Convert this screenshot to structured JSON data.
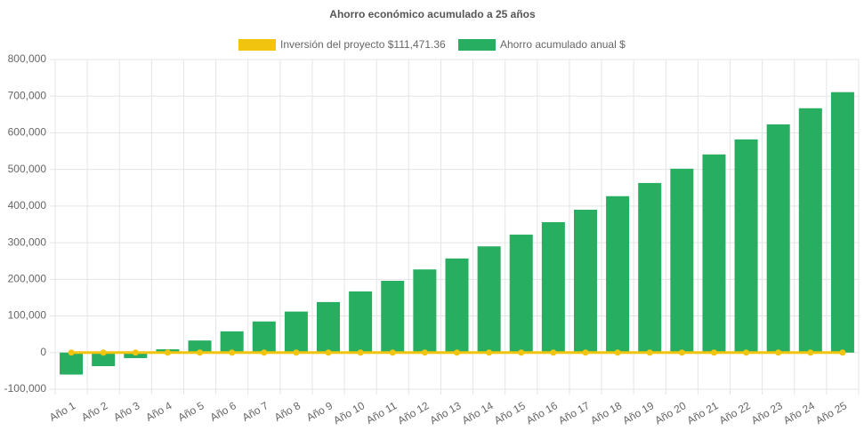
{
  "chart_data": {
    "type": "bar",
    "title": "Ahorro económico acumulado a 25 años",
    "categories": [
      "Año 1",
      "Año 2",
      "Año 3",
      "Año 4",
      "Año 5",
      "Año 6",
      "Año 7",
      "Año 8",
      "Año 9",
      "Año 10",
      "Año 11",
      "Año 12",
      "Año 13",
      "Año 14",
      "Año 15",
      "Año 16",
      "Año 17",
      "Año 18",
      "Año 19",
      "Año 20",
      "Año 21",
      "Año 22",
      "Año 23",
      "Año 24",
      "Año 25"
    ],
    "series": [
      {
        "name": "Inversión del proyecto $111,471.36",
        "type": "line",
        "color": "#f1c40f",
        "values": [
          0,
          0,
          0,
          0,
          0,
          0,
          0,
          0,
          0,
          0,
          0,
          0,
          0,
          0,
          0,
          0,
          0,
          0,
          0,
          0,
          0,
          0,
          0,
          0,
          0
        ]
      },
      {
        "name": "Ahorro acumulado anual $",
        "type": "bar",
        "color": "#27ae60",
        "values": [
          -60000,
          -37000,
          -15000,
          9000,
          33000,
          58000,
          85000,
          112000,
          138000,
          167000,
          196000,
          227000,
          257000,
          290000,
          322000,
          356000,
          390000,
          427000,
          463000,
          502000,
          541000,
          582000,
          623000,
          667000,
          711000
        ]
      }
    ],
    "ylim": [
      -100000,
      800000
    ],
    "yticks": [
      {
        "value": -100000,
        "label": "-100,000"
      },
      0,
      {
        "value": 100000,
        "label": "100,000"
      },
      {
        "value": 200000,
        "label": "200,000"
      },
      {
        "value": 300000,
        "label": "300,000"
      },
      {
        "value": 400000,
        "label": "400,000"
      },
      {
        "value": 500000,
        "label": "500,000"
      },
      {
        "value": 600000,
        "label": "600,000"
      },
      {
        "value": 700000,
        "label": "700,000"
      },
      {
        "value": 800000,
        "label": "800,000"
      }
    ],
    "grid": true
  }
}
